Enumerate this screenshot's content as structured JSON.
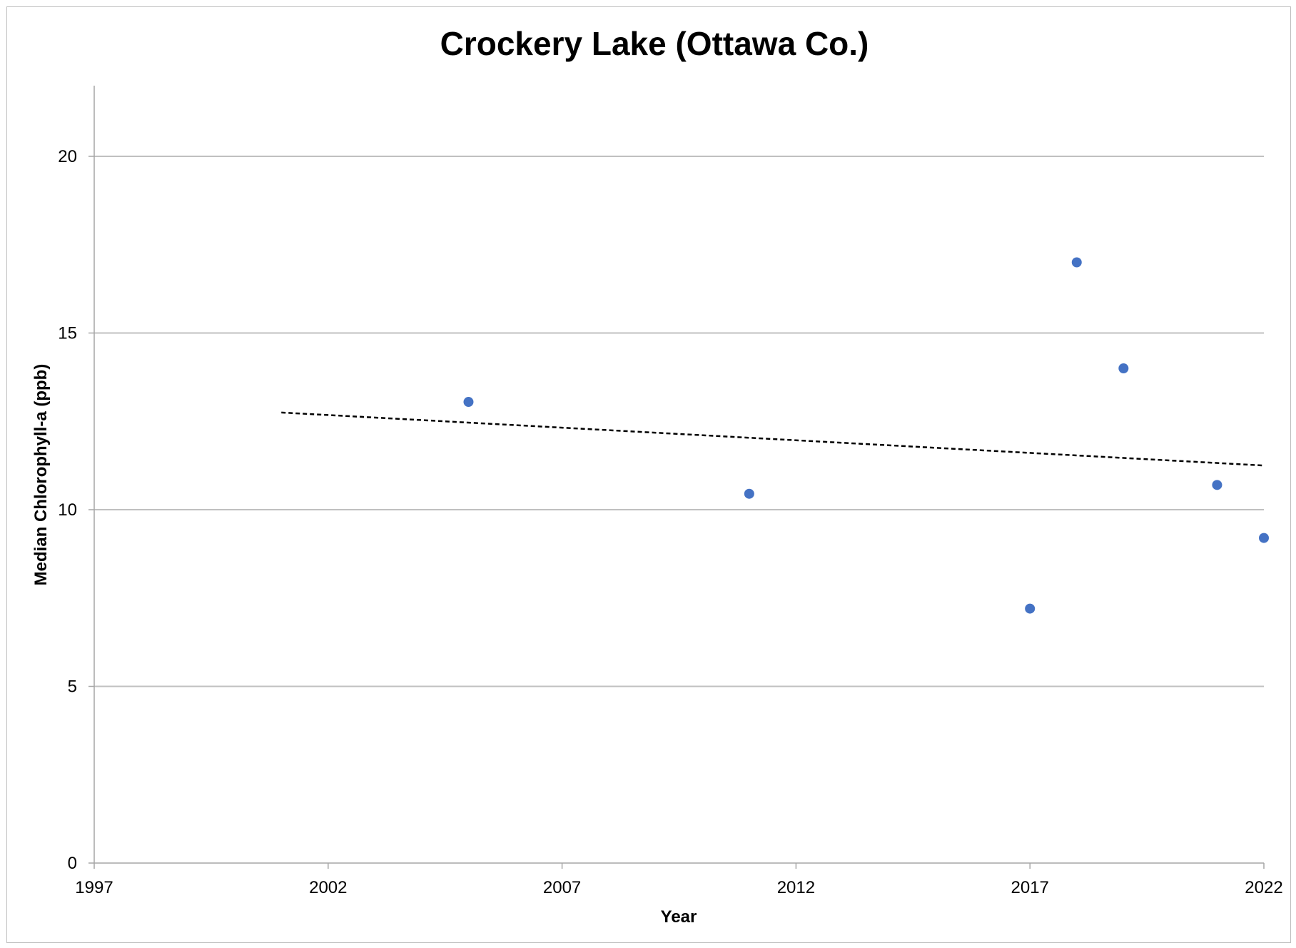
{
  "chart_data": {
    "type": "scatter",
    "title": "Crockery Lake (Ottawa Co.)",
    "xlabel": "Year",
    "ylabel": "Median Chlorophyll-a (ppb)",
    "xlim": [
      1997,
      2022
    ],
    "ylim": [
      0,
      22
    ],
    "x_ticks": [
      "1997",
      "2002",
      "2007",
      "2012",
      "2017",
      "2022"
    ],
    "y_ticks": [
      "0",
      "5",
      "10",
      "15",
      "20"
    ],
    "grid": "horizontal",
    "legend": "none",
    "series": [
      {
        "x": [
          2005,
          2011,
          2017,
          2018,
          2019,
          2021,
          2022
        ],
        "y": [
          13.05,
          10.45,
          7.2,
          17.0,
          14.0,
          10.7,
          9.2
        ],
        "color": "#4472c4"
      }
    ],
    "trendline": {
      "x": [
        2001,
        2022
      ],
      "y": [
        12.75,
        11.25
      ],
      "color": "#000000",
      "style": "dashed"
    }
  }
}
